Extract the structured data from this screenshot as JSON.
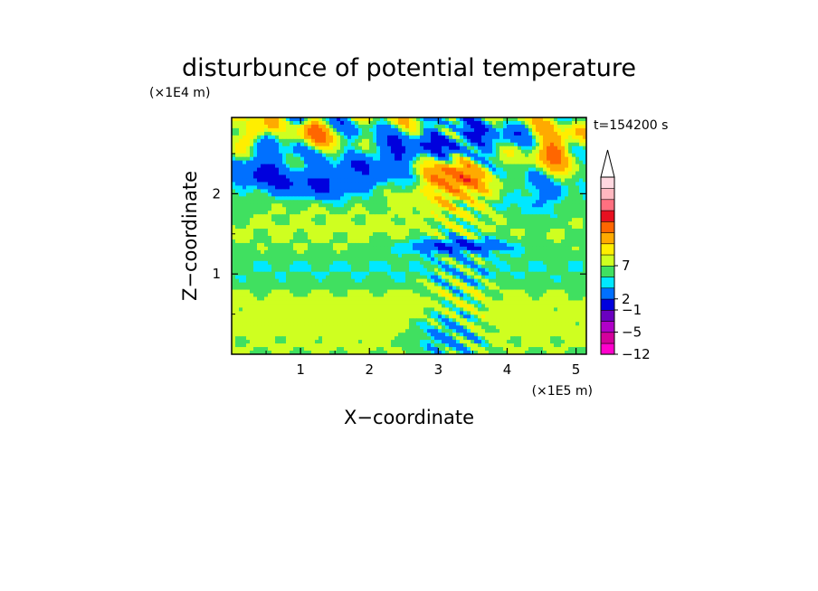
{
  "chart_data": {
    "type": "heatmap",
    "title": "disturbunce of potential temperature",
    "xlabel": "X−coordinate",
    "ylabel": "Z−coordinate",
    "x_unit": "(×1E5 m)",
    "y_unit": "(×1E4 m)",
    "time_label": "t=154200 s",
    "xlim": [
      0,
      5.15
    ],
    "ylim": [
      0,
      2.95
    ],
    "x_ticks": [
      "1",
      "2",
      "3",
      "4",
      "5"
    ],
    "y_ticks": [
      "1",
      "2"
    ],
    "colorbar": {
      "labels": [
        {
          "text": "7",
          "level": 8
        },
        {
          "text": "2",
          "level": 5
        },
        {
          "text": "−1",
          "level": 4
        },
        {
          "text": "−5",
          "level": 2
        },
        {
          "text": "−12",
          "level": 0
        }
      ],
      "colors": [
        "#ff00cc",
        "#d4009c",
        "#b000c8",
        "#6a00c0",
        "#0000dd",
        "#0070ff",
        "#00e8ff",
        "#40e060",
        "#cfff20",
        "#ffee00",
        "#ffaa00",
        "#ff6600",
        "#e81020",
        "#ff7080",
        "#ffb8c0",
        "#ffd8e0"
      ],
      "extend": "max"
    },
    "field_features": [
      {
        "value": 1.0,
        "x": 2.5,
        "z": 0.45,
        "sx": 3.2,
        "sz": 0.35
      },
      {
        "value": -0.8,
        "x": 2.5,
        "z": 1.05,
        "sx": 3.4,
        "sz": 0.16
      },
      {
        "value": 0.6,
        "x": 2.5,
        "z": 1.6,
        "sx": 3.4,
        "sz": 0.3
      },
      {
        "value": -3.5,
        "x": 1.3,
        "z": 2.15,
        "sx": 0.55,
        "sz": 0.14
      },
      {
        "value": -3.0,
        "x": 2.3,
        "z": 2.45,
        "sx": 0.35,
        "sz": 0.14
      },
      {
        "value": -3.0,
        "x": 0.45,
        "z": 2.35,
        "sx": 0.25,
        "sz": 0.2
      },
      {
        "value": 4.5,
        "x": 3.25,
        "z": 2.2,
        "sx": 0.35,
        "sz": 0.2
      },
      {
        "value": -4.0,
        "x": 3.3,
        "z": 2.65,
        "sx": 0.45,
        "sz": 0.13
      },
      {
        "value": -3.5,
        "x": 3.3,
        "z": 1.35,
        "sx": 0.5,
        "sz": 0.07
      },
      {
        "value": 4.5,
        "x": 0.3,
        "z": 2.75,
        "sx": 0.12,
        "sz": 0.12
      },
      {
        "value": 4.0,
        "x": 1.2,
        "z": 2.75,
        "sx": 0.15,
        "sz": 0.12
      },
      {
        "value": 4.5,
        "x": 4.7,
        "z": 2.55,
        "sx": 0.2,
        "sz": 0.18
      },
      {
        "value": -2.0,
        "x": 3.1,
        "z": 0.25,
        "sx": 0.35,
        "sz": 0.2
      },
      {
        "value": -1.5,
        "x": 4.45,
        "z": 1.95,
        "sx": 0.4,
        "sz": 0.2
      }
    ]
  }
}
